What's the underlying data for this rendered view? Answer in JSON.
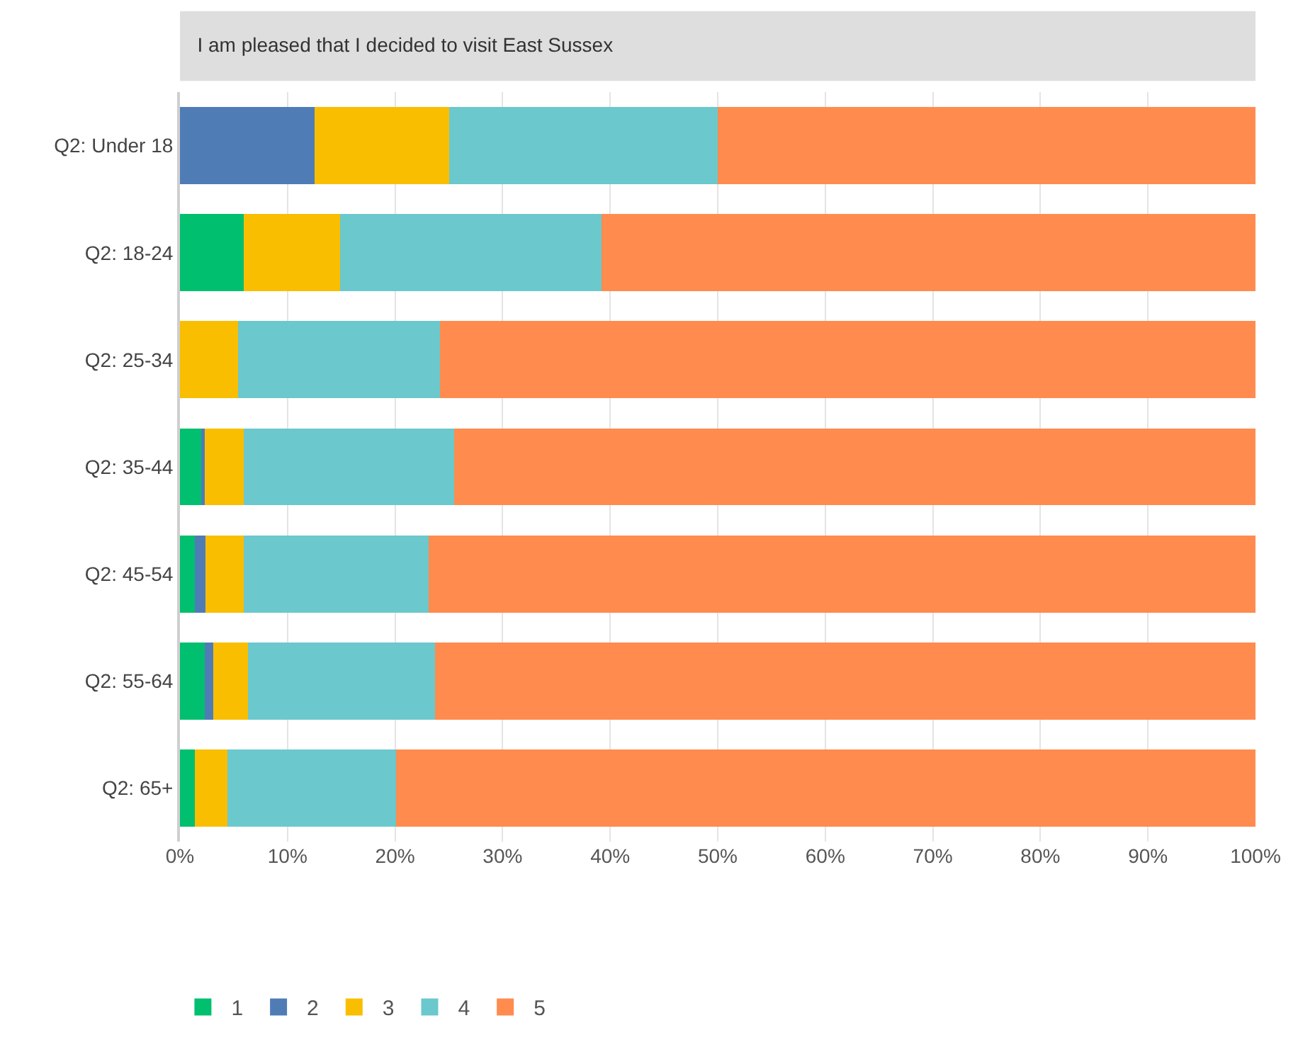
{
  "chart_data": {
    "type": "bar",
    "orientation": "horizontal",
    "stacked": true,
    "title": "I am pleased that I decided to visit East Sussex",
    "categories": [
      "Q2: Under 18",
      "Q2: 18-24",
      "Q2: 25-34",
      "Q2: 35-44",
      "Q2: 45-54",
      "Q2: 55-64",
      "Q2: 65+"
    ],
    "series": [
      {
        "name": "1",
        "color": "#00bf6f",
        "values": [
          0,
          5.9,
          0,
          2.1,
          1.4,
          2.3,
          1.4
        ]
      },
      {
        "name": "2",
        "color": "#507cb6",
        "values": [
          12.5,
          0,
          0,
          0.2,
          1.0,
          0.8,
          0
        ]
      },
      {
        "name": "3",
        "color": "#f9be00",
        "values": [
          12.5,
          9.0,
          5.4,
          3.6,
          3.5,
          3.2,
          3.0
        ]
      },
      {
        "name": "4",
        "color": "#6bc8cd",
        "values": [
          25.0,
          24.3,
          18.8,
          19.6,
          17.2,
          17.4,
          15.7
        ]
      },
      {
        "name": "5",
        "color": "#ff8b4f",
        "values": [
          50.0,
          60.8,
          75.8,
          74.5,
          76.9,
          76.3,
          79.9
        ]
      }
    ],
    "xlim": [
      0,
      100
    ],
    "xticks": [
      {
        "value": 0,
        "label": "0%"
      },
      {
        "value": 10,
        "label": "10%"
      },
      {
        "value": 20,
        "label": "20%"
      },
      {
        "value": 30,
        "label": "30%"
      },
      {
        "value": 40,
        "label": "40%"
      },
      {
        "value": 50,
        "label": "50%"
      },
      {
        "value": 60,
        "label": "60%"
      },
      {
        "value": 70,
        "label": "70%"
      },
      {
        "value": 80,
        "label": "80%"
      },
      {
        "value": 90,
        "label": "90%"
      },
      {
        "value": 100,
        "label": "100%"
      }
    ],
    "grid": "x",
    "legend": "bottom left"
  }
}
